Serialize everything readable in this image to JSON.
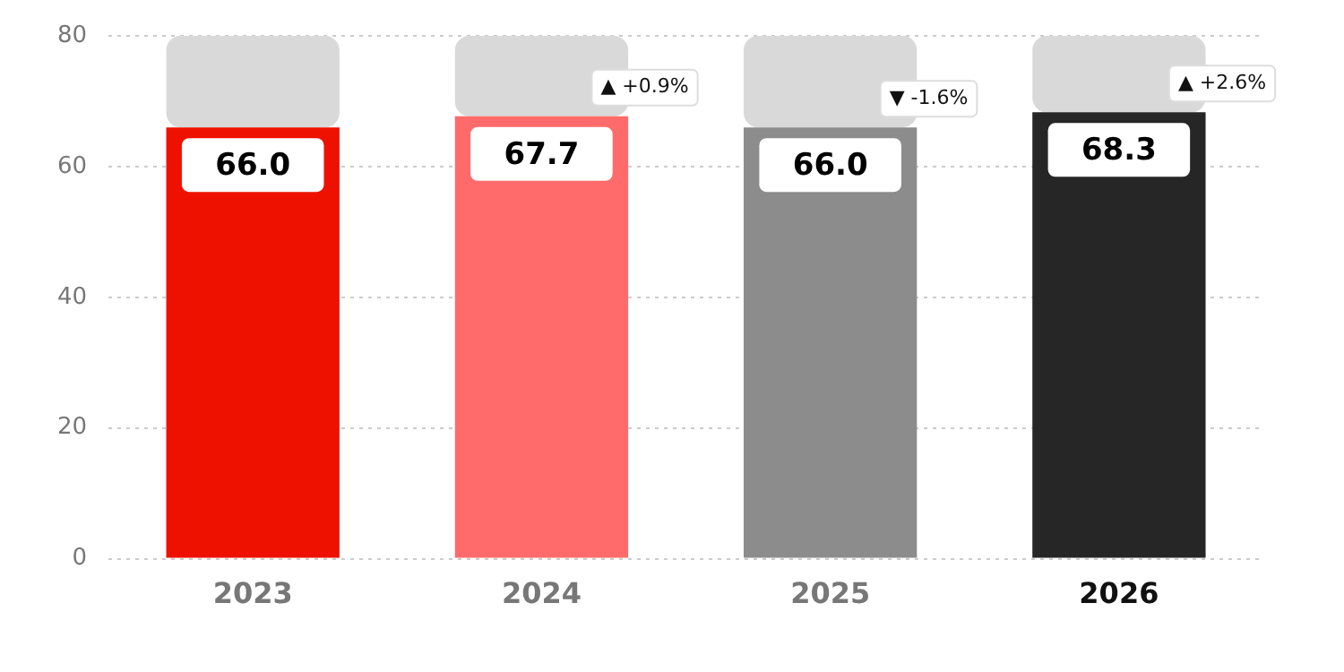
{
  "chart_data": {
    "type": "bar",
    "categories": [
      "2023",
      "2024",
      "2025",
      "2026"
    ],
    "stacked": true,
    "series": [
      {
        "colors": [
          "#ee1100",
          "#ff6b6b",
          "#8c8c8c",
          "#262626"
        ],
        "values": [
          66.0,
          67.7,
          66.0,
          68.3
        ],
        "value_labels": [
          "66.0",
          "67.7",
          "66.0",
          "68.3"
        ]
      },
      {
        "color": "#d9d9d9",
        "values": [
          14.0,
          12.3,
          14.0,
          11.7
        ]
      }
    ],
    "ylim": [
      0,
      80
    ],
    "yticks": [
      0,
      20,
      40,
      60,
      80
    ],
    "grid": "y",
    "legend": false,
    "annotations": [
      "▲ +0.9%",
      "▼ -1.6%",
      "▲ +2.6%"
    ]
  }
}
